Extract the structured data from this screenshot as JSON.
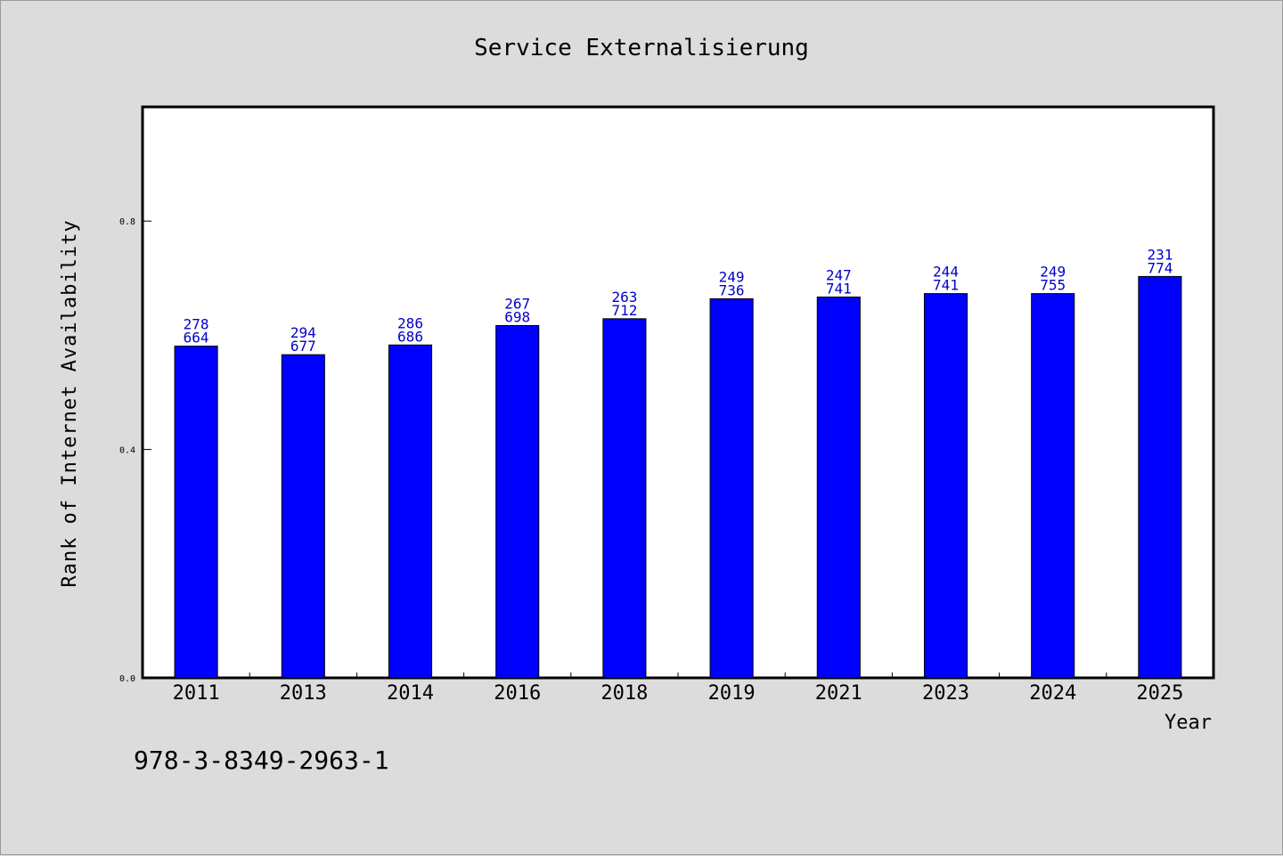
{
  "chart_data": {
    "type": "bar",
    "title": "Service Externalisierung",
    "xlabel": "Year",
    "ylabel": "Rank of Internet Availability",
    "categories": [
      "2011",
      "2013",
      "2014",
      "2016",
      "2018",
      "2019",
      "2021",
      "2023",
      "2024",
      "2025"
    ],
    "values": [
      0.581,
      0.566,
      0.583,
      0.617,
      0.629,
      0.664,
      0.667,
      0.673,
      0.673,
      0.703
    ],
    "data_labels": [
      [
        "278",
        "664"
      ],
      [
        "294",
        "677"
      ],
      [
        "286",
        "686"
      ],
      [
        "267",
        "698"
      ],
      [
        "263",
        "712"
      ],
      [
        "249",
        "736"
      ],
      [
        "247",
        "741"
      ],
      [
        "244",
        "741"
      ],
      [
        "249",
        "755"
      ],
      [
        "231",
        "774"
      ]
    ],
    "yticks": [
      0.0,
      0.4,
      0.8
    ],
    "ytick_labels": [
      "0.0",
      "0.4",
      "0.8"
    ],
    "ylim": [
      0,
      1.0
    ],
    "grid": false,
    "bar_color": "#0000ff",
    "label_color": "#0000cc"
  },
  "footer_text": "978-3-8349-2963-1"
}
